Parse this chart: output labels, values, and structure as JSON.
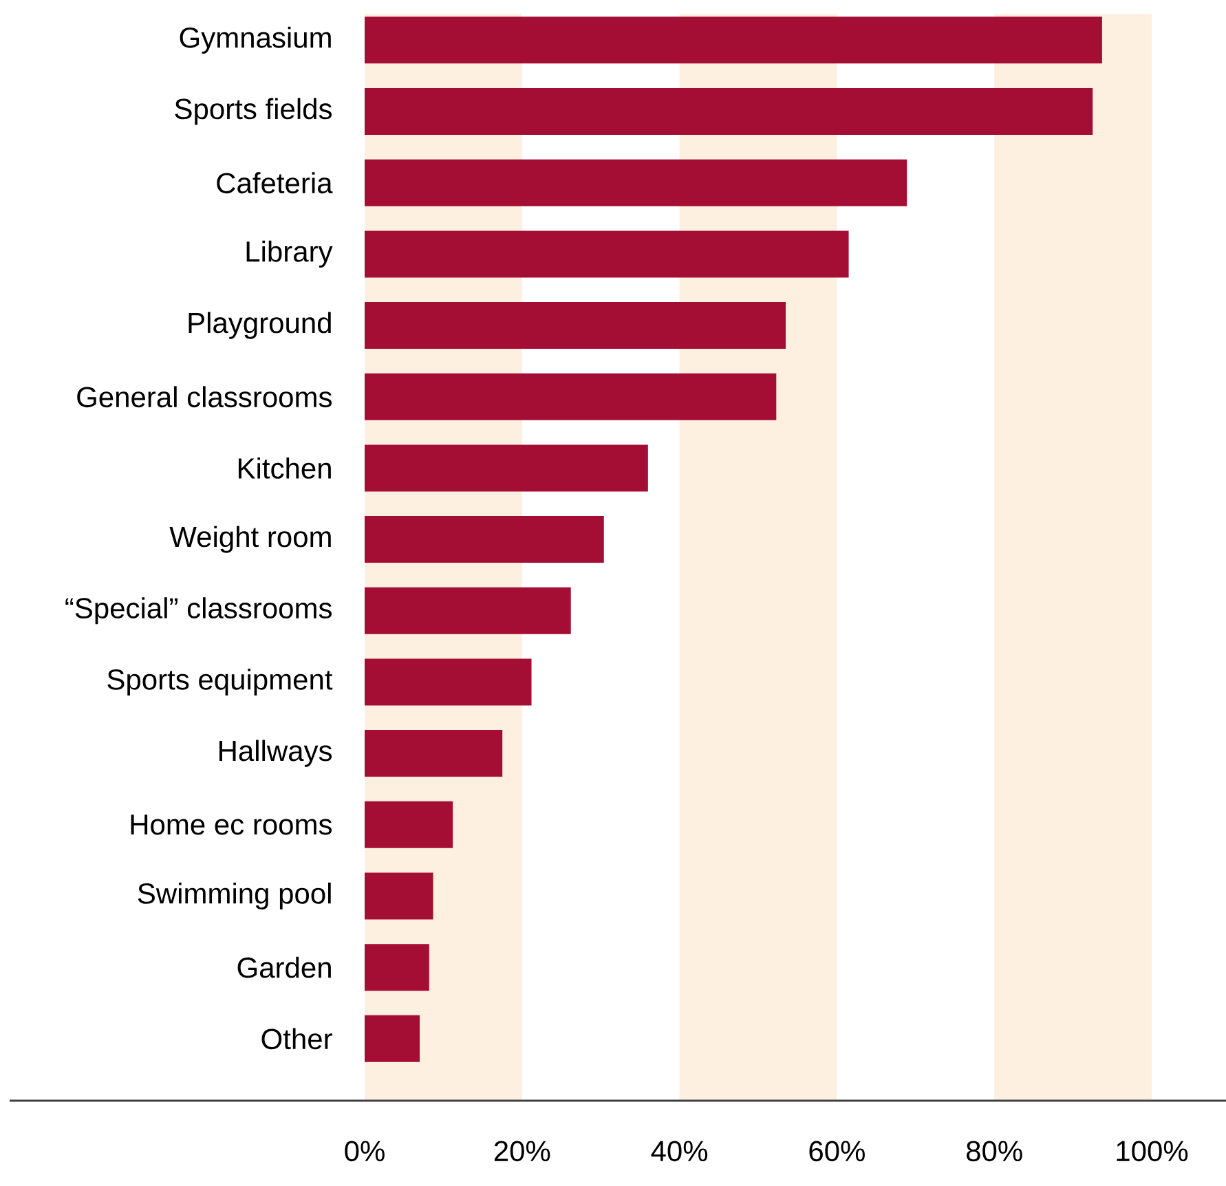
{
  "chart_data": {
    "type": "bar",
    "orientation": "horizontal",
    "categories": [
      "Gymnasium",
      "Sports fields",
      "Cafeteria",
      "Library",
      "Playground",
      "General classrooms",
      "Kitchen",
      "Weight room",
      "“Special” classrooms",
      "Sports equipment",
      "Hallways",
      "Home ec rooms",
      "Swimming pool",
      "Garden",
      "Other"
    ],
    "values": [
      93.7,
      92.5,
      68.9,
      61.5,
      53.5,
      52.3,
      36.0,
      30.4,
      26.2,
      21.2,
      17.5,
      11.2,
      8.7,
      8.2,
      7.0
    ],
    "color": "#a50e34",
    "xlim": [
      0,
      100
    ],
    "xticks": [
      {
        "value": 0,
        "label": "0%"
      },
      {
        "value": 20,
        "label": "20%"
      },
      {
        "value": 40,
        "label": "40%"
      },
      {
        "value": 60,
        "label": "60%"
      },
      {
        "value": 80,
        "label": "80%"
      },
      {
        "value": 100,
        "label": "100%"
      }
    ],
    "bands": [
      {
        "axis": "x",
        "from": 0,
        "to": 20,
        "color": "#fdf0e0"
      },
      {
        "axis": "x",
        "from": 40,
        "to": 60,
        "color": "#fdf0e0"
      },
      {
        "axis": "x",
        "from": 80,
        "to": 100,
        "color": "#fdf0e0"
      }
    ],
    "grid": false
  }
}
